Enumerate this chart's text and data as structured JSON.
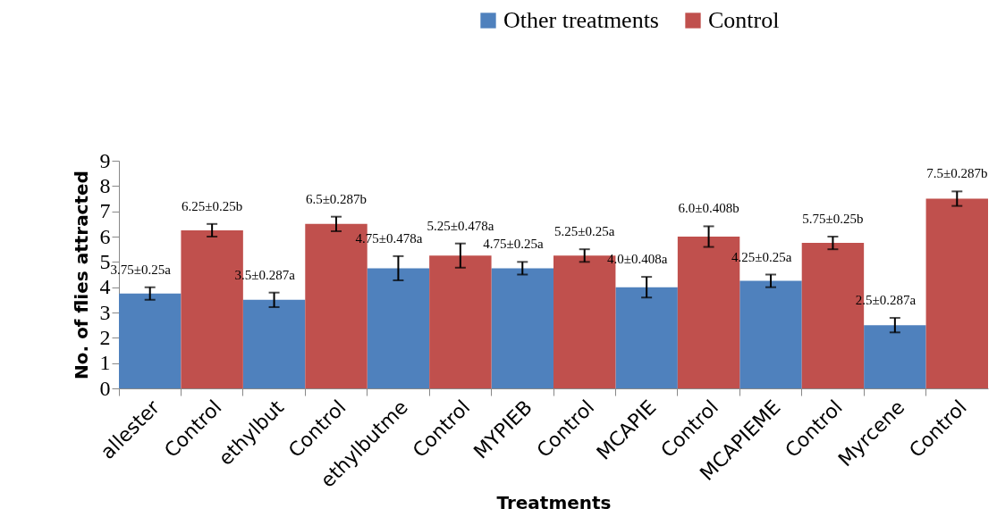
{
  "chart_data": {
    "type": "bar",
    "xlabel": "Treatments",
    "ylabel": "No. of flies attracted",
    "categories": [
      "allester",
      "Control",
      "ethylbut",
      "Control",
      "ethylbutme",
      "Control",
      "MYPIEB",
      "Control",
      "MCAPIE",
      "Control",
      "MCAPIEME",
      "Control",
      "Myrcene",
      "Control"
    ],
    "series": [
      {
        "name": "Other treatments",
        "color": "#4f81bd",
        "values": [
          3.75,
          null,
          3.5,
          null,
          4.75,
          null,
          4.75,
          null,
          4.0,
          null,
          4.25,
          null,
          2.5,
          null
        ],
        "errors": [
          0.25,
          null,
          0.287,
          null,
          0.478,
          null,
          0.25,
          null,
          0.408,
          null,
          0.25,
          null,
          0.287,
          null
        ],
        "value_labels": [
          "3.75±0.25a",
          null,
          "3.5±0.287a",
          null,
          "4.75±0.478a",
          null,
          "4.75±0.25a",
          null,
          "4.0±0.408a",
          null,
          "4.25±0.25a",
          null,
          "2.5±0.287a",
          null
        ]
      },
      {
        "name": "Control",
        "color": "#c0504d",
        "values": [
          null,
          6.25,
          null,
          6.5,
          null,
          5.25,
          null,
          5.25,
          null,
          6.0,
          null,
          5.75,
          null,
          7.5
        ],
        "errors": [
          null,
          0.25,
          null,
          0.287,
          null,
          0.478,
          null,
          0.25,
          null,
          0.408,
          null,
          0.25,
          null,
          0.287
        ],
        "value_labels": [
          null,
          "6.25±0.25b",
          null,
          "6.5±0.287b",
          null,
          "5.25±0.478a",
          null,
          "5.25±0.25a",
          null,
          "6.0±0.408b",
          null,
          "5.75±0.25b",
          null,
          "7.5±0.287b"
        ]
      }
    ],
    "ylim": [
      0,
      9
    ],
    "yticks": [
      0,
      1,
      2,
      3,
      4,
      5,
      6,
      7,
      8,
      9
    ],
    "legend": "top right",
    "grid": false
  }
}
